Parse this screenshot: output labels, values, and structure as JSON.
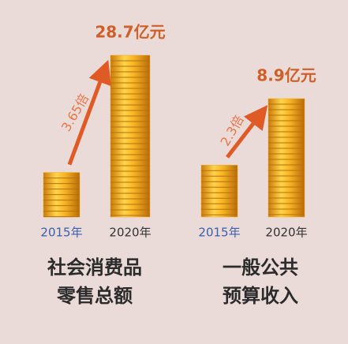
{
  "chart_data": [
    {
      "type": "bar",
      "title": [
        "社会消费品",
        "零售总额"
      ],
      "categories": [
        "2015年",
        "2020年"
      ],
      "values": [
        7.9,
        28.7
      ],
      "value_labels": [
        null,
        "28.7亿元"
      ],
      "annotation": "3.65倍",
      "color": "#f2ab1f"
    },
    {
      "type": "bar",
      "title": [
        "一般公共",
        "预算收入"
      ],
      "categories": [
        "2015年",
        "2020年"
      ],
      "values": [
        3.9,
        8.9
      ],
      "value_labels": [
        null,
        "8.9亿元"
      ],
      "annotation": "2.3倍",
      "color": "#f2ab1f"
    }
  ]
}
